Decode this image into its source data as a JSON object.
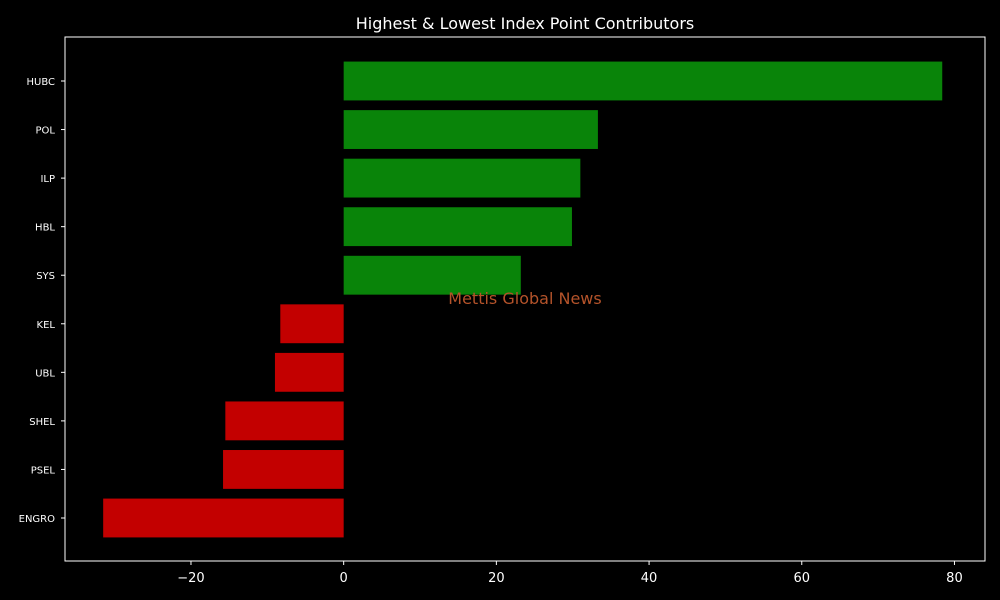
{
  "chart_data": {
    "type": "bar",
    "orientation": "horizontal",
    "title": "Highest & Lowest Index Point Contributors",
    "xlabel": "",
    "ylabel": "",
    "categories": [
      "HUBC",
      "POL",
      "ILP",
      "HBL",
      "SYS",
      "KEL",
      "UBL",
      "SHEL",
      "PSEL",
      "ENGRO"
    ],
    "values": [
      78.4,
      33.3,
      31.0,
      29.9,
      23.2,
      -8.3,
      -9.0,
      -15.5,
      -15.8,
      -31.5
    ],
    "xlim": [
      -36.5,
      84.0
    ],
    "xticks": [
      -20,
      0,
      20,
      40,
      60,
      80
    ],
    "xtick_labels": [
      "−20",
      "0",
      "20",
      "40",
      "60",
      "80"
    ],
    "grid": false,
    "colors": {
      "positive": "#098409",
      "negative": "#c30000",
      "background": "#000000",
      "text": "#ffffff",
      "watermark": "#b4532a"
    }
  },
  "watermark": "Mettis Global News"
}
